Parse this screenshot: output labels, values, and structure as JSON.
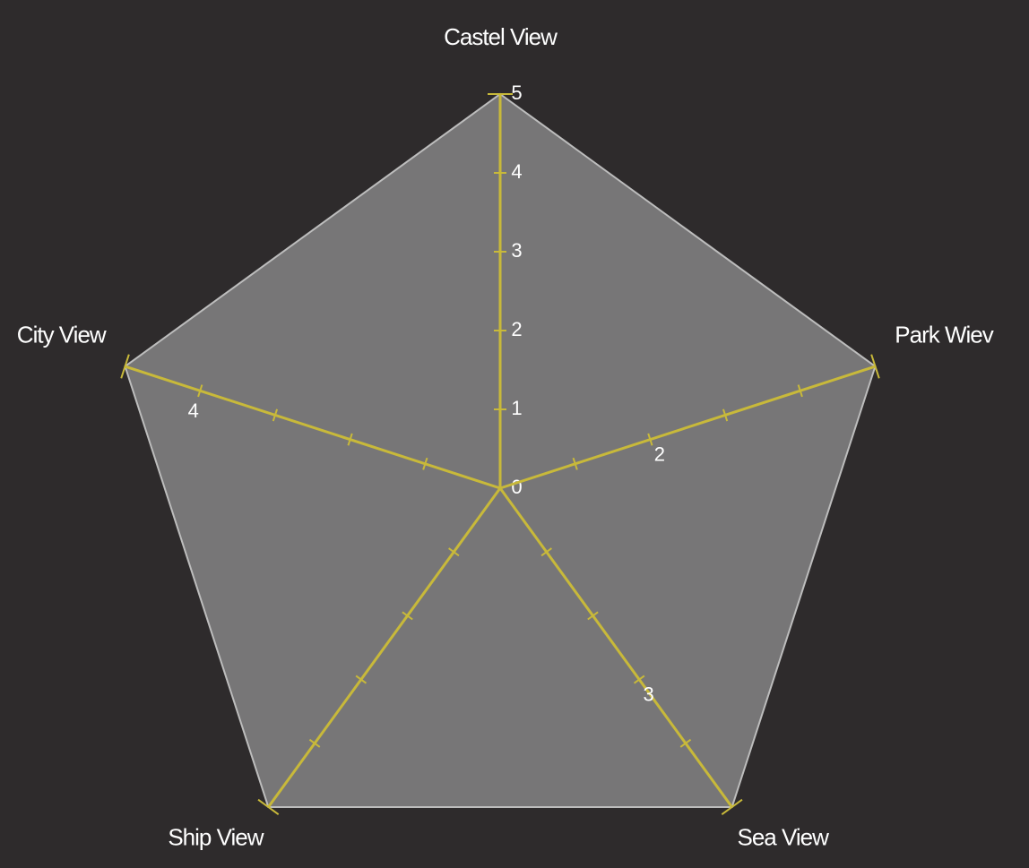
{
  "chart_data": {
    "type": "radar",
    "categories": [
      "Castel View",
      "Park Wiev",
      "Sea View",
      "Ship View",
      "City View"
    ],
    "series": [
      {
        "color": "#777677",
        "values": [
          5,
          5,
          5,
          5,
          5
        ]
      }
    ],
    "rlim": [
      0,
      5
    ],
    "rticks": [
      0,
      1,
      2,
      3,
      4,
      5
    ],
    "axis_tick_labels": [
      [
        0,
        1,
        2,
        3,
        4,
        5
      ],
      [
        2
      ],
      [
        3
      ],
      [],
      [
        4
      ]
    ],
    "axis_color": "#c8b93a"
  }
}
